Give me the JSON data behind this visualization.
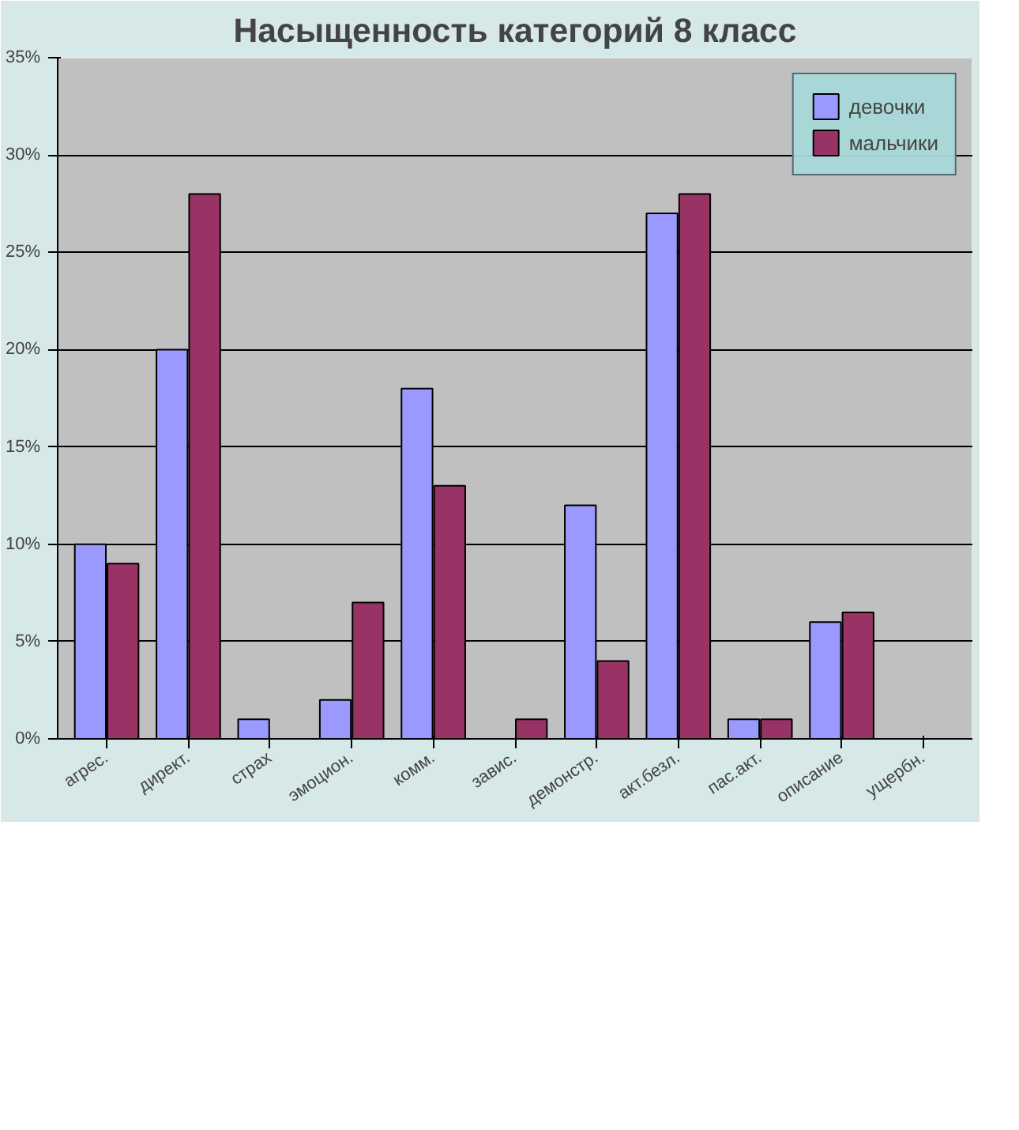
{
  "chart_data": {
    "type": "bar",
    "title": "Насыщенность категорий 8 класс",
    "categories": [
      "агрес.",
      "директ.",
      "страх",
      "эмоцион.",
      "комм.",
      "завис.",
      "демонстр.",
      "акт.безл.",
      "пас.акт.",
      "описание",
      "ущербн."
    ],
    "series": [
      {
        "name": "девочки",
        "color": "#9999ff",
        "values": [
          10,
          20,
          1,
          2,
          18,
          0,
          12,
          27,
          1,
          6,
          0
        ]
      },
      {
        "name": "мальчики",
        "color": "#993366",
        "values": [
          9,
          28,
          0,
          7,
          13,
          1,
          4,
          28,
          1,
          6.5,
          0
        ]
      }
    ],
    "ylim": [
      0,
      35
    ],
    "yticks": [
      {
        "value": 0,
        "label": "0%"
      },
      {
        "value": 5,
        "label": "5%"
      },
      {
        "value": 10,
        "label": "10%"
      },
      {
        "value": 15,
        "label": "15%"
      },
      {
        "value": 20,
        "label": "20%"
      },
      {
        "value": 25,
        "label": "25%"
      },
      {
        "value": 30,
        "label": "30%"
      },
      {
        "value": 35,
        "label": "35%"
      }
    ],
    "grid": "y",
    "legend": "right"
  }
}
